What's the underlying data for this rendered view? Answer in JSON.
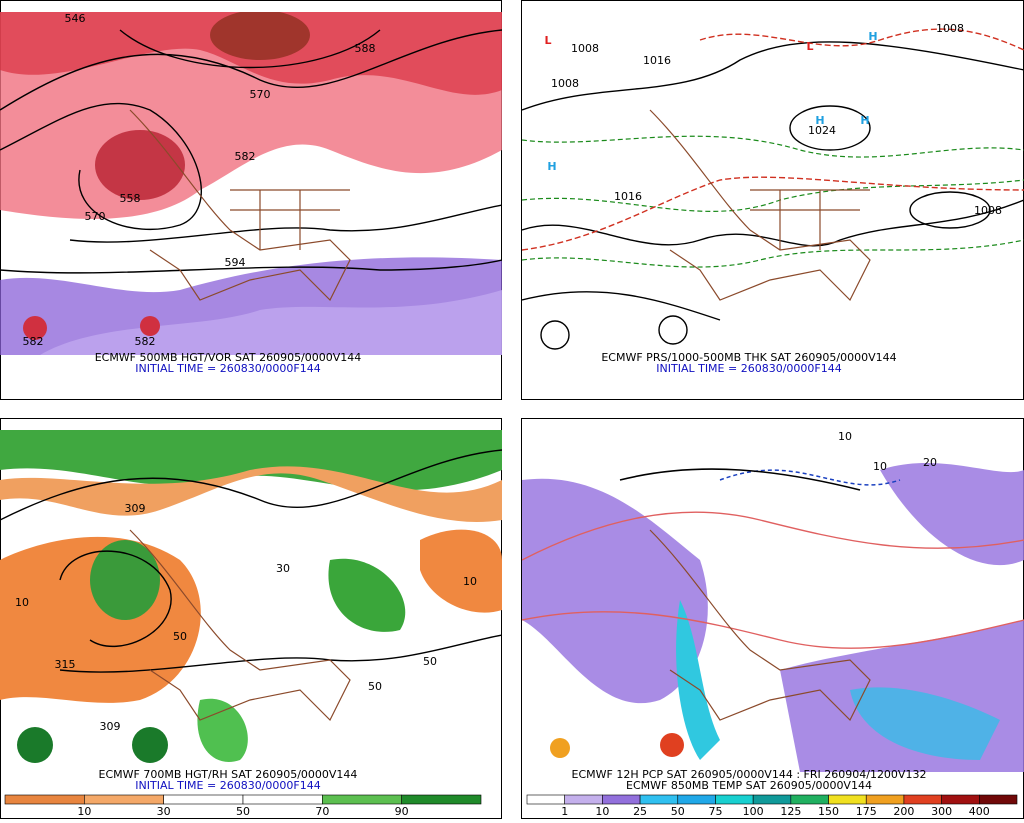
{
  "panels": [
    {
      "caption": "ECMWF 500MB HGT/VOR SAT 260905/0000V144",
      "initial_time": "INITIAL TIME = 260830/0000F144",
      "labels": [
        "546",
        "570",
        "582",
        "558",
        "570",
        "594",
        "588",
        "582",
        "582"
      ]
    },
    {
      "caption": "ECMWF PRS/1000-500MB THK SAT 260905/0000V144",
      "initial_time": "INITIAL TIME = 260830/0000F144",
      "labels": [
        "H",
        "H",
        "H",
        "H",
        "L",
        "L",
        "1008",
        "1016",
        "1024",
        "1008",
        "1016",
        "1008",
        "1008"
      ]
    },
    {
      "caption": "ECMWF 700MB HGT/RH SAT 260905/0000V144",
      "initial_time": "INITIAL TIME = 260830/0000F144",
      "labels": [
        "309",
        "315",
        "309",
        "10",
        "50",
        "50",
        "10",
        "30",
        "50"
      ],
      "colorbar": [
        10,
        30,
        50,
        70,
        90
      ]
    },
    {
      "caption": "ECMWF 12H PCP SAT 260905/0000V144 : FRI 260904/1200V132",
      "initial_time": "ECMWF 850MB TEMP SAT 260905/0000V144",
      "labels": [
        "10",
        "10",
        "20"
      ],
      "colorbar": [
        1,
        10,
        25,
        50,
        75,
        100,
        125,
        150,
        175,
        200,
        300,
        400
      ]
    }
  ]
}
